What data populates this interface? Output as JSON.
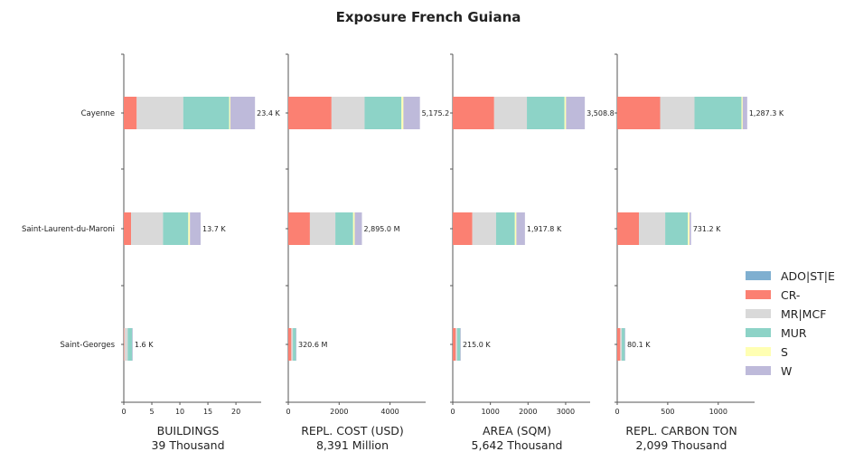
{
  "chart_data": {
    "type": "bar",
    "orientation": "horizontal",
    "stacked": true,
    "title": "Exposure French Guiana",
    "categories": [
      "Cayenne",
      "Saint-Laurent-du-Maroni",
      "Saint-Georges"
    ],
    "legend": {
      "position": "right",
      "entries": [
        {
          "name": "ADO|ST|E",
          "color": "#7fafd0"
        },
        {
          "name": "CR-",
          "color": "#fb8072"
        },
        {
          "name": "MR|MCF",
          "color": "#d9d9d9"
        },
        {
          "name": "MUR",
          "color": "#8dd3c7"
        },
        {
          "name": "S",
          "color": "#ffffb3"
        },
        {
          "name": "W",
          "color": "#bebada"
        }
      ]
    },
    "panels": [
      {
        "xlabel": "BUILDINGS",
        "total": "39 Thousand",
        "xlim": [
          0,
          24.5
        ],
        "ticks": [
          0,
          5,
          10,
          15,
          20
        ],
        "tick_labels": [
          "0",
          "5",
          "10",
          "15",
          "20"
        ],
        "totals_labels": [
          "23.4 K",
          "13.7 K",
          "1.6 K"
        ],
        "values": [
          [
            0,
            2.3,
            8.3,
            8.2,
            0.2,
            4.4
          ],
          [
            0,
            1.3,
            5.7,
            4.5,
            0.3,
            1.9
          ],
          [
            0,
            0.1,
            0.6,
            0.8,
            0,
            0.1
          ]
        ]
      },
      {
        "xlabel": "REPL. COST (USD)",
        "total": "8,391 Million",
        "xlim": [
          0,
          5400
        ],
        "ticks": [
          0,
          2000,
          4000
        ],
        "tick_labels": [
          "0",
          "2000",
          "4000"
        ],
        "totals_labels": [
          "5,175.2",
          "2,895.0 M",
          "320.6 M"
        ],
        "values": [
          [
            0,
            1700,
            1300,
            1450,
            75,
            650
          ],
          [
            0,
            850,
            1000,
            700,
            60,
            285
          ],
          [
            0,
            120,
            60,
            120,
            0,
            20
          ]
        ]
      },
      {
        "xlabel": "AREA (SQM)",
        "total": "5,642 Thousand",
        "xlim": [
          0,
          3650
        ],
        "ticks": [
          0,
          1000,
          2000,
          3000
        ],
        "tick_labels": [
          "0",
          "1000",
          "2000",
          "3000"
        ],
        "totals_labels": [
          "3,508.8",
          "1,917.8 K",
          "215.0 K"
        ],
        "values": [
          [
            0,
            1100,
            870,
            1000,
            40,
            499
          ],
          [
            0,
            520,
            630,
            500,
            40,
            228
          ],
          [
            0,
            80,
            40,
            80,
            0,
            15
          ]
        ]
      },
      {
        "xlabel": "REPL. CARBON TON",
        "total": "2,099 Thousand",
        "xlim": [
          0,
          1360
        ],
        "ticks": [
          0,
          500,
          1000
        ],
        "tick_labels": [
          "0",
          "500",
          "1000"
        ],
        "totals_labels": [
          "1,287.3 K",
          "731.2 K",
          "80.1 K"
        ],
        "values": [
          [
            0,
            425,
            340,
            465,
            12,
            45
          ],
          [
            0,
            215,
            260,
            225,
            15,
            16
          ],
          [
            0,
            30,
            15,
            30,
            0,
            5
          ]
        ]
      }
    ]
  }
}
